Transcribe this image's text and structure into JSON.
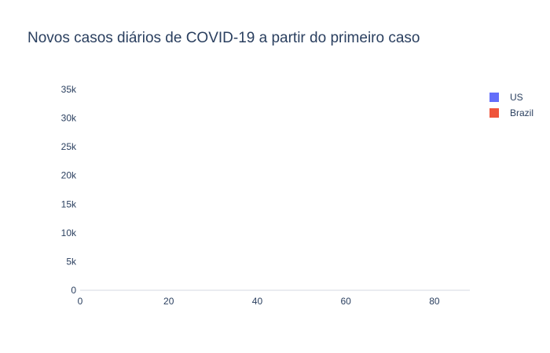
{
  "chart_data": {
    "type": "bar",
    "title": "Novos casos diários de COVID-19 a partir do primeiro caso",
    "xlabel": "",
    "ylabel": "",
    "xlim": [
      0,
      88
    ],
    "ylim": [
      0,
      35000
    ],
    "x_ticks": [
      0,
      20,
      40,
      60,
      80
    ],
    "x_tick_labels": [
      "0",
      "20",
      "40",
      "60",
      "80"
    ],
    "y_ticks": [
      0,
      5000,
      10000,
      15000,
      20000,
      25000,
      30000,
      35000
    ],
    "y_tick_labels": [
      "0",
      "5k",
      "10k",
      "15k",
      "20k",
      "25k",
      "30k",
      "35k"
    ],
    "grid": false,
    "legend_position": "top-right",
    "barmode": "group",
    "series": [
      {
        "name": "US",
        "color": "#636efa",
        "points": [
          [
            0,
            1
          ],
          [
            1,
            0
          ],
          [
            2,
            0
          ],
          [
            3,
            0
          ],
          [
            4,
            0
          ],
          [
            5,
            0
          ],
          [
            6,
            0
          ],
          [
            7,
            0
          ],
          [
            8,
            0
          ],
          [
            9,
            0
          ],
          [
            10,
            0
          ],
          [
            11,
            0
          ],
          [
            12,
            0
          ],
          [
            13,
            0
          ],
          [
            14,
            0
          ],
          [
            15,
            0
          ],
          [
            16,
            0
          ],
          [
            17,
            0
          ],
          [
            18,
            0
          ],
          [
            19,
            0
          ],
          [
            20,
            0
          ],
          [
            21,
            0
          ],
          [
            22,
            0
          ],
          [
            23,
            0
          ],
          [
            24,
            0
          ],
          [
            25,
            0
          ],
          [
            26,
            0
          ],
          [
            27,
            0
          ],
          [
            28,
            0
          ],
          [
            29,
            0
          ],
          [
            30,
            0
          ],
          [
            31,
            0
          ],
          [
            32,
            0
          ],
          [
            33,
            0
          ],
          [
            34,
            0
          ],
          [
            35,
            0
          ],
          [
            36,
            0
          ],
          [
            37,
            0
          ],
          [
            38,
            0
          ],
          [
            39,
            0
          ],
          [
            40,
            0
          ],
          [
            41,
            0
          ],
          [
            42,
            0
          ],
          [
            43,
            0
          ],
          [
            44,
            0
          ],
          [
            45,
            0
          ],
          [
            46,
            0
          ],
          [
            47,
            0
          ],
          [
            48,
            0
          ],
          [
            49,
            0
          ],
          [
            50,
            0
          ],
          [
            51,
            0
          ],
          [
            52,
            0
          ],
          [
            53,
            0
          ],
          [
            54,
            0
          ],
          [
            55,
            0
          ],
          [
            56,
            0
          ],
          [
            57,
            0
          ],
          [
            58,
            0
          ],
          [
            59,
            0
          ],
          [
            60,
            0
          ],
          [
            61,
            0
          ],
          [
            62,
            0
          ],
          [
            63,
            0
          ],
          [
            64,
            0
          ],
          [
            65,
            0
          ],
          [
            66,
            0
          ],
          [
            67,
            0
          ],
          [
            68,
            0
          ],
          [
            69,
            0
          ],
          [
            70,
            0
          ],
          [
            71,
            0
          ],
          [
            72,
            0
          ],
          [
            73,
            0
          ],
          [
            74,
            0
          ],
          [
            75,
            0
          ],
          [
            76,
            0
          ],
          [
            77,
            0
          ],
          [
            78,
            0
          ],
          [
            79,
            0
          ],
          [
            80,
            0
          ],
          [
            81,
            0
          ],
          [
            82,
            0
          ],
          [
            83,
            0
          ],
          [
            84,
            0
          ],
          [
            85,
            0
          ],
          [
            86,
            0
          ],
          [
            87,
            0
          ]
        ]
      },
      {
        "name": "Brazil",
        "color": "#ef553b",
        "points": [
          [
            0,
            0
          ],
          [
            1,
            0
          ],
          [
            2,
            0
          ],
          [
            3,
            0
          ],
          [
            4,
            0
          ],
          [
            5,
            0
          ],
          [
            6,
            0
          ],
          [
            7,
            0
          ],
          [
            8,
            0
          ],
          [
            9,
            0
          ],
          [
            10,
            0
          ],
          [
            11,
            0
          ],
          [
            12,
            0
          ],
          [
            13,
            0
          ],
          [
            14,
            0
          ],
          [
            15,
            0
          ],
          [
            16,
            0
          ],
          [
            17,
            0
          ],
          [
            18,
            0
          ],
          [
            19,
            0
          ],
          [
            20,
            0
          ],
          [
            21,
            0
          ],
          [
            22,
            0
          ],
          [
            23,
            0
          ],
          [
            24,
            0
          ],
          [
            25,
            0
          ],
          [
            26,
            0
          ],
          [
            27,
            0
          ],
          [
            28,
            0
          ],
          [
            29,
            0
          ],
          [
            30,
            0
          ],
          [
            31,
            0
          ],
          [
            32,
            0
          ],
          [
            33,
            0
          ],
          [
            34,
            0
          ],
          [
            35,
            0
          ],
          [
            36,
            0
          ],
          [
            37,
            0
          ],
          [
            38,
            0
          ],
          [
            39,
            0
          ],
          [
            40,
            0
          ],
          [
            41,
            0
          ],
          [
            42,
            0
          ],
          [
            43,
            0
          ],
          [
            44,
            0
          ],
          [
            45,
            0
          ],
          [
            46,
            0
          ],
          [
            47,
            0
          ],
          [
            48,
            0
          ],
          [
            49,
            0
          ],
          [
            50,
            0
          ],
          [
            51,
            0
          ],
          [
            52,
            0
          ],
          [
            53,
            0
          ],
          [
            54,
            0
          ]
        ]
      }
    ]
  }
}
